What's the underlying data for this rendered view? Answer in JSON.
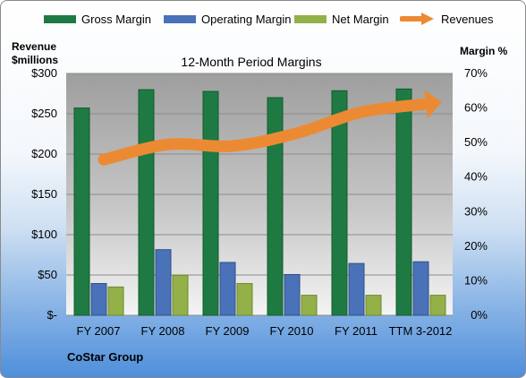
{
  "title": "12-Month Period Margins",
  "left_axis_title": [
    "Revenue",
    "$millions"
  ],
  "right_axis_title": "Margin %",
  "footer": "CoStar Group",
  "legend": [
    {
      "label": "Gross Margin",
      "color": "#1e7a42",
      "kind": "bar"
    },
    {
      "label": "Operating Margin",
      "color": "#4a72b8",
      "kind": "bar"
    },
    {
      "label": "Net Margin",
      "color": "#93b049",
      "kind": "bar"
    },
    {
      "label": "Revenues",
      "color": "#ec8a33",
      "kind": "arrow"
    }
  ],
  "chart_data": {
    "type": "bar",
    "title": "12-Month Period Margins",
    "categories": [
      "FY 2007",
      "FY 2008",
      "FY 2009",
      "FY 2010",
      "FY 2011",
      "TTM 3-2012"
    ],
    "series": [
      {
        "name": "Gross Margin",
        "axis": "right",
        "unit": "%",
        "values": [
          60.0,
          65.3,
          64.8,
          63.0,
          65.0,
          65.5
        ]
      },
      {
        "name": "Operating Margin",
        "axis": "right",
        "unit": "%",
        "values": [
          9.2,
          19.0,
          15.3,
          11.8,
          15.0,
          15.5
        ]
      },
      {
        "name": "Net Margin",
        "axis": "right",
        "unit": "%",
        "values": [
          8.2,
          11.6,
          9.2,
          5.8,
          5.8,
          5.8
        ]
      },
      {
        "name": "Revenues",
        "axis": "left",
        "type": "line",
        "unit": "$millions",
        "values": [
          193,
          212,
          210,
          226,
          252,
          262
        ]
      }
    ],
    "left_axis": {
      "label": "Revenue $millions",
      "min": 0,
      "max": 300,
      "ticks": [
        "$-",
        "$50",
        "$100",
        "$150",
        "$200",
        "$250",
        "$300"
      ]
    },
    "right_axis": {
      "label": "Margin %",
      "min": 0,
      "max": 70,
      "ticks": [
        "0%",
        "10%",
        "20%",
        "30%",
        "40%",
        "50%",
        "60%",
        "70%"
      ]
    },
    "grid": true,
    "legend_position": "top"
  }
}
